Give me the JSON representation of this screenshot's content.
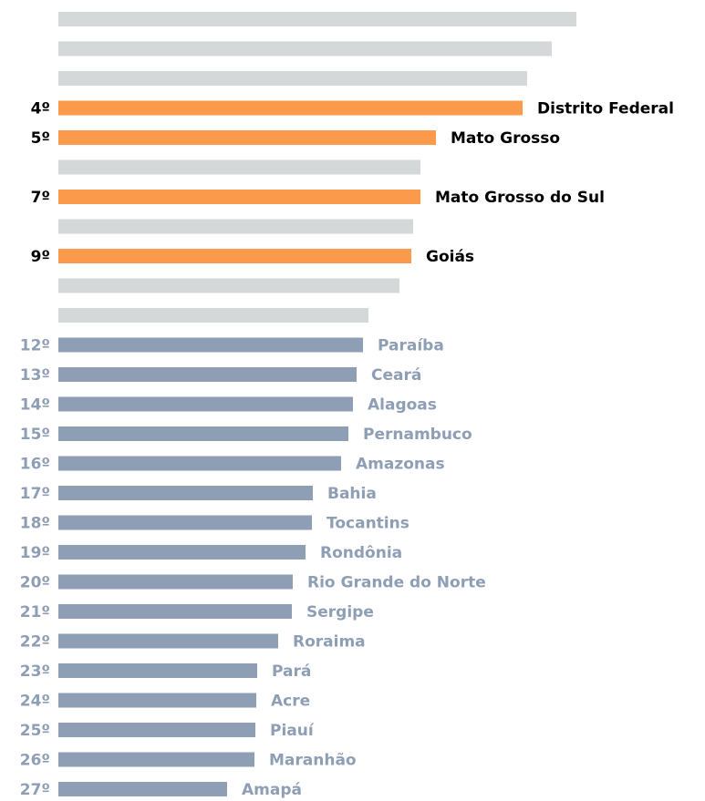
{
  "chart_data": {
    "type": "barh",
    "ranks": [
      null,
      null,
      null,
      "4º",
      "5º",
      null,
      "7º",
      null,
      "9º",
      null,
      null,
      "12º",
      "13º",
      "14º",
      "15º",
      "16º",
      "17º",
      "18º",
      "19º",
      "20º",
      "21º",
      "22º",
      "23º",
      "24º",
      "25º",
      "26º",
      "27º"
    ],
    "categories": [
      null,
      null,
      null,
      "Distrito Federal",
      "Mato Grosso",
      null,
      "Mato Grosso do Sul",
      null,
      "Goiás",
      null,
      null,
      "Paraíba",
      "Ceará",
      "Alagoas",
      "Pernambuco",
      "Amazonas",
      "Bahia",
      "Tocantins",
      "Rondônia",
      "Rio Grande do Norte",
      "Sergipe",
      "Roraima",
      "Pará",
      "Acre",
      "Piauí",
      "Maranhão",
      "Amapá"
    ],
    "values": [
      568,
      541,
      514,
      509,
      414,
      397,
      397,
      389,
      387,
      374,
      340,
      334,
      327,
      323,
      318,
      310,
      279,
      278,
      271,
      257,
      256,
      241,
      218,
      217,
      216,
      215,
      185
    ],
    "colors": [
      "#d5d8d8",
      "#d5d8d8",
      "#d5d8d8",
      "#fb9a4b",
      "#fb9a4b",
      "#d5d8d8",
      "#fb9a4b",
      "#d5d8d8",
      "#fb9a4b",
      "#d5d8d8",
      "#d5d8d8",
      "#8e9eb5",
      "#8e9eb5",
      "#8e9eb5",
      "#8e9eb5",
      "#8e9eb5",
      "#8e9eb5",
      "#8e9eb5",
      "#8e9eb5",
      "#8e9eb5",
      "#8e9eb5",
      "#8e9eb5",
      "#8e9eb5",
      "#8e9eb5",
      "#8e9eb5",
      "#8e9eb5",
      "#8e9eb5"
    ],
    "label_colors": [
      "#8e9eb5",
      "#8e9eb5",
      "#8e9eb5",
      "#000000",
      "#000000",
      "#8e9eb5",
      "#000000",
      "#8e9eb5",
      "#000000",
      "#8e9eb5",
      "#8e9eb5",
      "#8e9eb5",
      "#8e9eb5",
      "#8e9eb5",
      "#8e9eb5",
      "#8e9eb5",
      "#8e9eb5",
      "#8e9eb5",
      "#8e9eb5",
      "#8e9eb5",
      "#8e9eb5",
      "#8e9eb5",
      "#8e9eb5",
      "#8e9eb5",
      "#8e9eb5",
      "#8e9eb5",
      "#8e9eb5"
    ],
    "xlim": [
      0,
      600
    ]
  }
}
